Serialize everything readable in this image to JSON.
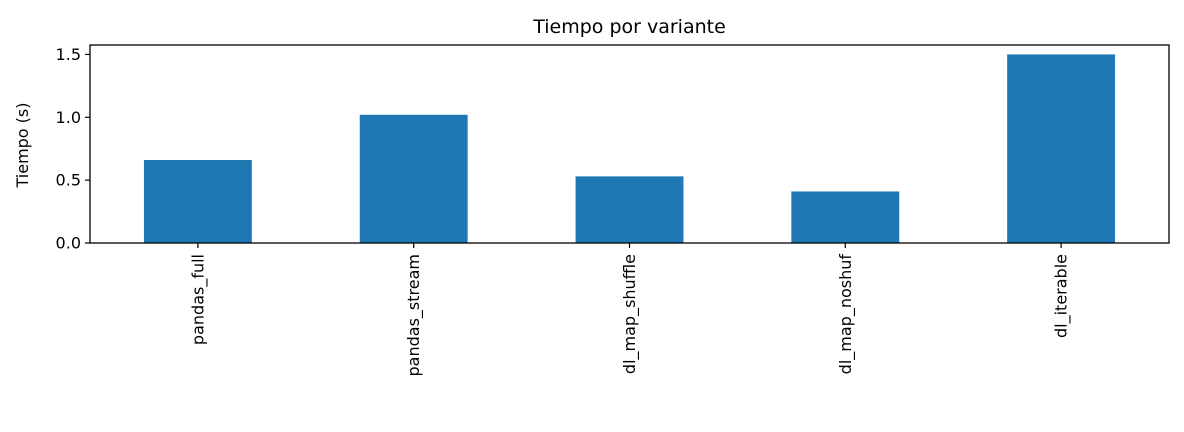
{
  "chart_data": {
    "type": "bar",
    "title": "Tiempo por variante",
    "xlabel": "",
    "ylabel": "Tiempo (s)",
    "categories": [
      "pandas_full",
      "pandas_stream",
      "dl_map_shuffle",
      "dl_map_noshuf",
      "dl_iterable"
    ],
    "values": [
      0.66,
      1.02,
      0.53,
      0.41,
      1.5
    ],
    "ylim": [
      0,
      1.575
    ],
    "yticks": [
      0.0,
      0.5,
      1.0,
      1.5
    ],
    "ytick_labels": [
      "0.0",
      "0.5",
      "1.0",
      "1.5"
    ],
    "bar_color": "#1f77b4",
    "grid": false,
    "legend": "none"
  }
}
